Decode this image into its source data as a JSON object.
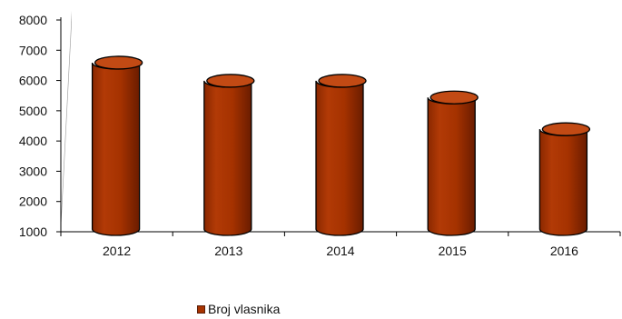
{
  "chart_data": {
    "type": "bar",
    "categories": [
      "2012",
      "2013",
      "2014",
      "2015",
      "2016"
    ],
    "series": [
      {
        "name": "Broj vlasnika",
        "values": [
          6800,
          6200,
          6200,
          5650,
          4600
        ]
      }
    ],
    "title": "",
    "xlabel": "",
    "ylabel": "",
    "ylim": [
      1000,
      8000
    ],
    "yticks": [
      "1000",
      "2000",
      "3000",
      "4000",
      "5000",
      "6000",
      "7000",
      "8000"
    ],
    "grid": false,
    "legend_position": "bottom",
    "colors": {
      "bar": "#a83300",
      "bar_dark": "#6e1e00",
      "bar_top": "#c24a14",
      "wall": "#9a9a9a"
    }
  },
  "legend": {
    "label": "Broj vlasnika",
    "color": "#a83300"
  }
}
